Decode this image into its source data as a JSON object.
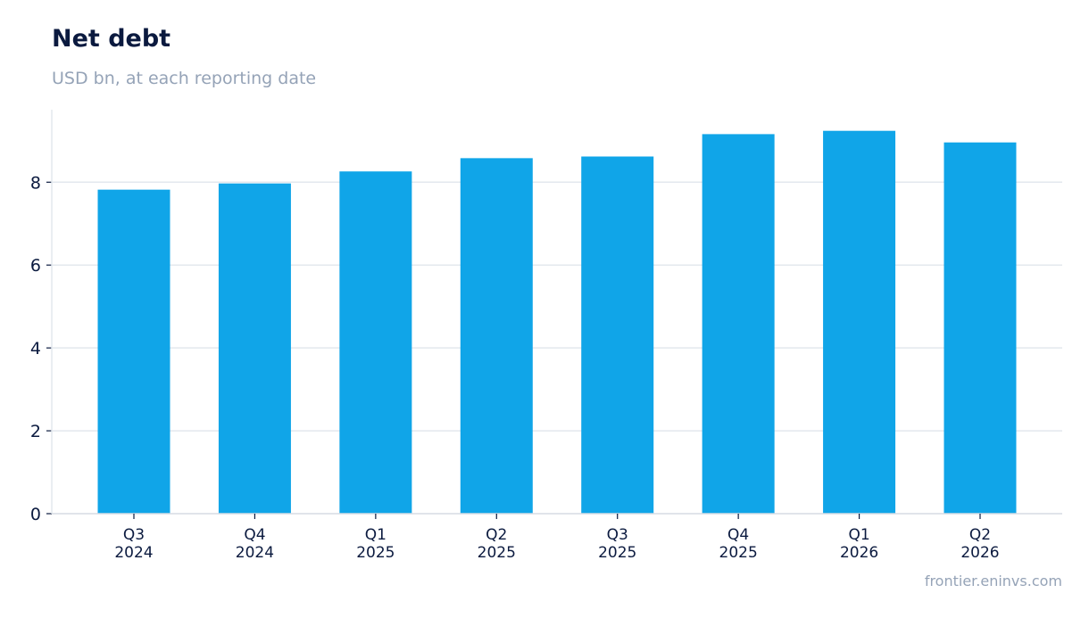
{
  "chart_data": {
    "type": "bar",
    "title": "Net debt",
    "subtitle": "USD bn, at each reporting date",
    "categories": [
      [
        "Q3",
        "2024"
      ],
      [
        "Q4",
        "2024"
      ],
      [
        "Q1",
        "2025"
      ],
      [
        "Q2",
        "2025"
      ],
      [
        "Q3",
        "2025"
      ],
      [
        "Q4",
        "2025"
      ],
      [
        "Q1",
        "2026"
      ],
      [
        "Q2",
        "2026"
      ]
    ],
    "values": [
      7.82,
      7.97,
      8.26,
      8.58,
      8.62,
      9.16,
      9.24,
      8.96
    ],
    "ylim": [
      0,
      9.75
    ],
    "yticks": [
      0,
      2,
      4,
      6,
      8
    ],
    "grid": true,
    "bar_color": "#10a5e8",
    "grid_color": "#e3e8ee"
  },
  "source": "frontier.eninvs.com"
}
